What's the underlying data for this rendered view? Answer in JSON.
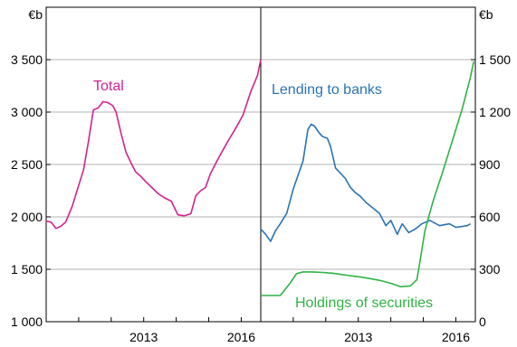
{
  "chart_data": [
    {
      "type": "line",
      "panel": "left",
      "title": "",
      "ylabel": "€b",
      "ylim": [
        1000,
        3500
      ],
      "yticks": [
        1000,
        1500,
        2000,
        2500,
        3000,
        3500
      ],
      "ytick_labels": [
        "1 000",
        "1 500",
        "2 000",
        "2 500",
        "3 000",
        "3 500"
      ],
      "xlim": [
        2010,
        2016.6
      ],
      "xtick_labels": [
        {
          "x": 2013,
          "label": "2013"
        },
        {
          "x": 2016,
          "label": "2016"
        }
      ],
      "grid": true,
      "series": [
        {
          "name": "Total",
          "color": "#d6218f",
          "x": [
            2010.0,
            2010.15,
            2010.3,
            2010.45,
            2010.6,
            2010.8,
            2011.0,
            2011.15,
            2011.3,
            2011.45,
            2011.6,
            2011.75,
            2011.9,
            2012.05,
            2012.15,
            2012.3,
            2012.45,
            2012.6,
            2012.75,
            2012.9,
            2013.05,
            2013.25,
            2013.45,
            2013.65,
            2013.85,
            2014.05,
            2014.25,
            2014.45,
            2014.6,
            2014.75,
            2014.9,
            2015.05,
            2015.3,
            2015.55,
            2015.8,
            2016.05,
            2016.3,
            2016.5,
            2016.6
          ],
          "values": [
            1960,
            1950,
            1890,
            1910,
            1950,
            2100,
            2300,
            2450,
            2720,
            3020,
            3040,
            3100,
            3090,
            3060,
            3000,
            2800,
            2620,
            2520,
            2430,
            2390,
            2340,
            2280,
            2220,
            2180,
            2150,
            2020,
            2010,
            2030,
            2200,
            2250,
            2280,
            2410,
            2560,
            2700,
            2830,
            2970,
            3200,
            3350,
            3500
          ]
        }
      ]
    },
    {
      "type": "line",
      "panel": "right",
      "title": "",
      "ylabel": "€b",
      "ylim": [
        0,
        1500
      ],
      "yticks": [
        0,
        300,
        600,
        900,
        1200,
        1500
      ],
      "ytick_labels": [
        "0",
        "300",
        "600",
        "900",
        "1 200",
        "1 500"
      ],
      "xlim": [
        2010,
        2016.6
      ],
      "xtick_labels": [
        {
          "x": 2013,
          "label": "2013"
        },
        {
          "x": 2016,
          "label": "2016"
        }
      ],
      "grid": true,
      "series": [
        {
          "name": "Lending to banks",
          "color": "#2a73b6",
          "x": [
            2010.0,
            2010.15,
            2010.3,
            2010.45,
            2010.6,
            2010.8,
            2011.0,
            2011.15,
            2011.3,
            2011.45,
            2011.55,
            2011.65,
            2011.8,
            2011.9,
            2012.05,
            2012.15,
            2012.3,
            2012.45,
            2012.6,
            2012.75,
            2012.9,
            2013.05,
            2013.25,
            2013.45,
            2013.65,
            2013.85,
            2014.0,
            2014.2,
            2014.35,
            2014.55,
            2014.75,
            2014.95,
            2015.2,
            2015.5,
            2015.8,
            2016.0,
            2016.2,
            2016.35,
            2016.45
          ],
          "values": [
            530,
            500,
            460,
            520,
            560,
            620,
            760,
            840,
            920,
            1100,
            1130,
            1120,
            1080,
            1060,
            1050,
            1000,
            880,
            850,
            820,
            770,
            740,
            720,
            680,
            650,
            620,
            550,
            580,
            500,
            560,
            510,
            530,
            560,
            580,
            550,
            560,
            540,
            545,
            550,
            560
          ]
        },
        {
          "name": "Holdings of securities",
          "color": "#2fb344",
          "x": [
            2010.0,
            2010.3,
            2010.6,
            2010.9,
            2011.1,
            2011.3,
            2011.6,
            2011.9,
            2012.2,
            2012.5,
            2012.8,
            2013.1,
            2013.4,
            2013.7,
            2014.0,
            2014.3,
            2014.6,
            2014.8,
            2014.9,
            2015.05,
            2015.3,
            2015.6,
            2015.9,
            2016.2,
            2016.45,
            2016.55
          ],
          "values": [
            150,
            150,
            150,
            220,
            275,
            285,
            285,
            282,
            278,
            270,
            262,
            255,
            245,
            235,
            220,
            200,
            205,
            240,
            350,
            520,
            690,
            860,
            1040,
            1220,
            1400,
            1490
          ]
        }
      ]
    }
  ]
}
